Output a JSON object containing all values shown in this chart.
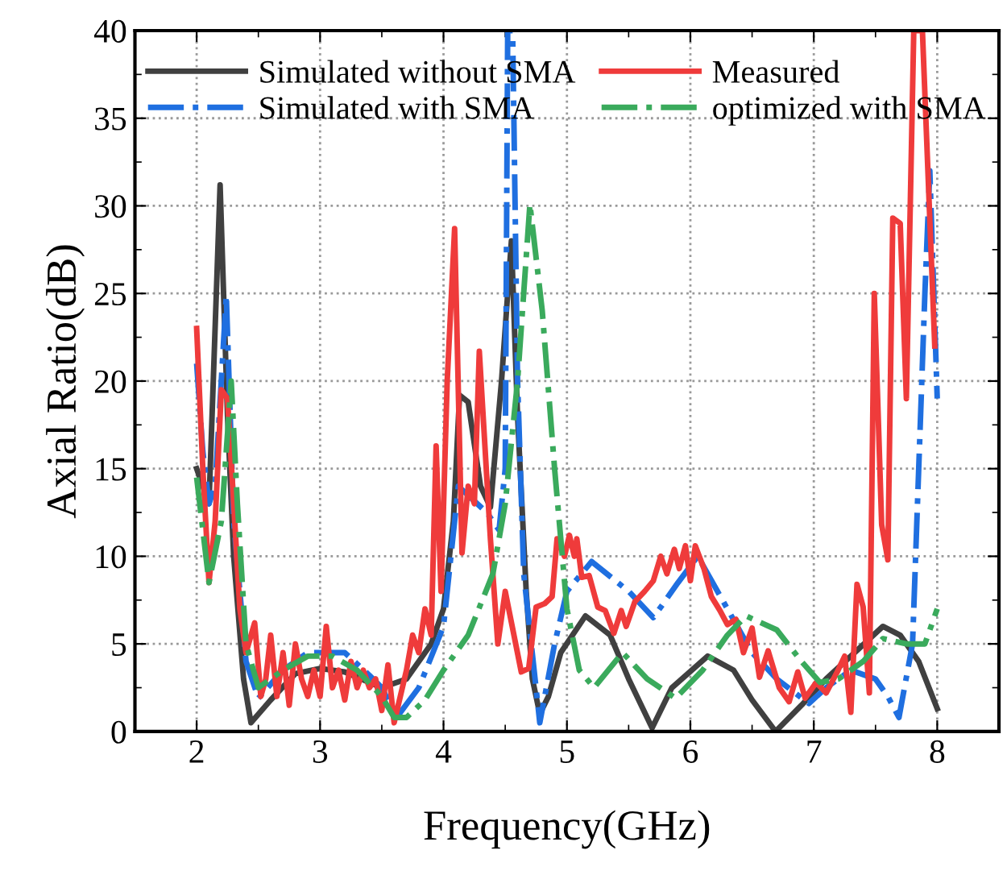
{
  "chart_data": {
    "type": "line",
    "xlabel": "Frequency(GHz)",
    "ylabel": "Axial Ratio(dB)",
    "xlim": [
      1.5,
      8.5
    ],
    "xticks": [
      2,
      3,
      4,
      5,
      6,
      7,
      8
    ],
    "ylim": [
      0,
      40
    ],
    "yticks": [
      0,
      5,
      10,
      15,
      20,
      25,
      30,
      35,
      40
    ],
    "grid": true,
    "legend": "top",
    "marker": "none",
    "series": [
      {
        "name": "Simulated without SMA",
        "color": "#404040",
        "line_style": "solid",
        "x": [
          2.0,
          2.1,
          2.19,
          2.25,
          2.3,
          2.38,
          2.44,
          2.6,
          2.8,
          3.0,
          3.2,
          3.5,
          3.7,
          3.9,
          4.0,
          4.08,
          4.13,
          4.2,
          4.3,
          4.38,
          4.47,
          4.55,
          4.6,
          4.67,
          4.72,
          4.78,
          4.85,
          4.95,
          5.15,
          5.35,
          5.5,
          5.69,
          5.85,
          6.14,
          6.35,
          6.5,
          6.69,
          6.9,
          7.1,
          7.3,
          7.56,
          7.7,
          7.85,
          8.0
        ],
        "values": [
          15,
          13,
          31.2,
          18,
          10,
          3,
          0.5,
          1.8,
          3.3,
          3.6,
          3.4,
          2.5,
          3,
          5,
          7,
          12,
          19.2,
          18.8,
          14,
          12.8,
          20,
          28,
          18,
          8,
          3,
          1,
          2,
          4.5,
          6.6,
          5.5,
          3,
          0.2,
          2.5,
          4.3,
          3.5,
          1.8,
          0,
          1.5,
          3,
          4.3,
          6,
          5.5,
          4,
          1.3
        ]
      },
      {
        "name": "Simulated with SMA",
        "color": "#1f6fe0",
        "line_style": "dashdot",
        "x": [
          2.0,
          2.05,
          2.1,
          2.15,
          2.24,
          2.3,
          2.4,
          2.5,
          2.7,
          2.9,
          3.2,
          3.4,
          3.5,
          3.62,
          3.8,
          4.0,
          4.12,
          4.35,
          4.45,
          4.5,
          4.52,
          4.56,
          4.6,
          4.65,
          4.78,
          4.9,
          5.0,
          5.2,
          5.5,
          5.7,
          5.9,
          6.06,
          6.3,
          6.5,
          6.7,
          6.96,
          7.1,
          7.3,
          7.5,
          7.6,
          7.69,
          7.8,
          7.85,
          7.9,
          7.94,
          8.0
        ],
        "values": [
          21,
          16,
          13,
          14,
          24.9,
          12,
          4,
          1.9,
          3.5,
          4.5,
          4.5,
          3.2,
          2.5,
          0.8,
          2.5,
          6,
          14,
          12.5,
          11.5,
          15,
          40,
          40,
          20,
          9,
          0.5,
          5,
          8,
          9.7,
          8,
          6.5,
          8.5,
          10,
          7,
          4.5,
          3,
          1.6,
          2.5,
          3.5,
          3,
          2,
          0.8,
          5,
          15,
          25,
          32,
          19
        ]
      },
      {
        "name": "Measured",
        "color": "#ef3b3b",
        "line_style": "solid",
        "x": [
          2.0,
          2.05,
          2.1,
          2.15,
          2.2,
          2.25,
          2.3,
          2.35,
          2.4,
          2.47,
          2.52,
          2.56,
          2.6,
          2.65,
          2.7,
          2.75,
          2.8,
          2.85,
          2.9,
          2.95,
          3.0,
          3.05,
          3.1,
          3.15,
          3.2,
          3.25,
          3.3,
          3.35,
          3.4,
          3.45,
          3.5,
          3.55,
          3.6,
          3.65,
          3.7,
          3.75,
          3.8,
          3.85,
          3.9,
          3.94,
          3.98,
          4.03,
          4.09,
          4.15,
          4.2,
          4.25,
          4.29,
          4.38,
          4.44,
          4.5,
          4.63,
          4.69,
          4.75,
          4.82,
          4.88,
          4.92,
          4.98,
          5.02,
          5.06,
          5.08,
          5.12,
          5.18,
          5.25,
          5.31,
          5.38,
          5.44,
          5.48,
          5.55,
          5.63,
          5.7,
          5.76,
          5.81,
          5.87,
          5.91,
          5.96,
          6.0,
          6.04,
          6.11,
          6.17,
          6.24,
          6.3,
          6.37,
          6.43,
          6.5,
          6.56,
          6.63,
          6.72,
          6.8,
          6.87,
          6.93,
          7.02,
          7.1,
          7.19,
          7.25,
          7.3,
          7.35,
          7.4,
          7.45,
          7.49,
          7.55,
          7.6,
          7.64,
          7.7,
          7.75,
          7.81,
          7.88,
          7.98
        ],
        "values": [
          23,
          15,
          8.5,
          12,
          19.5,
          19,
          13,
          7,
          4.5,
          6.2,
          2,
          3,
          5.5,
          2,
          4.5,
          1.5,
          5,
          3,
          2,
          3.5,
          2,
          6,
          2.5,
          3.5,
          1.8,
          4,
          2.5,
          3.5,
          2.5,
          3,
          1.2,
          3.8,
          0.5,
          2,
          3.5,
          5.5,
          4.5,
          7,
          5.5,
          16.3,
          8,
          20,
          28.7,
          10.2,
          14,
          13,
          21.7,
          11,
          5,
          8,
          3.4,
          3.6,
          7.1,
          7.3,
          7.7,
          11,
          10,
          11.2,
          10,
          11,
          8.8,
          8.9,
          7.1,
          6.9,
          5.6,
          6.9,
          6,
          7.4,
          8,
          8.6,
          10,
          9,
          10.4,
          9.3,
          10.6,
          8.6,
          10.6,
          9.3,
          7.7,
          6.9,
          6.1,
          6.4,
          4.5,
          5.9,
          3.1,
          4.6,
          2.5,
          1.7,
          3.4,
          1.9,
          2.8,
          2.2,
          3.4,
          4.3,
          1.1,
          8.4,
          7.1,
          2.2,
          25,
          11.8,
          9.8,
          29.3,
          29,
          19,
          40,
          40,
          22
        ]
      },
      {
        "name": "optimized with SMA",
        "color": "#3aaa5c",
        "line_style": "dashdot",
        "x": [
          2.0,
          2.1,
          2.2,
          2.28,
          2.33,
          2.4,
          2.5,
          2.7,
          2.9,
          3.1,
          3.3,
          3.5,
          3.6,
          3.7,
          3.85,
          4.0,
          4.2,
          4.4,
          4.5,
          4.6,
          4.7,
          4.8,
          4.9,
          5.0,
          5.1,
          5.22,
          5.45,
          5.65,
          5.88,
          6.1,
          6.3,
          6.45,
          6.7,
          6.9,
          7.05,
          7.2,
          7.4,
          7.56,
          7.75,
          7.9,
          8.0
        ],
        "values": [
          14.5,
          8.5,
          12,
          20,
          13,
          5,
          2.5,
          3.5,
          4.3,
          4.3,
          3.5,
          2,
          0.8,
          0.8,
          1.8,
          3.5,
          5.5,
          9,
          13,
          20,
          30.1,
          24,
          15,
          7,
          3.5,
          2.5,
          4.5,
          3,
          1.9,
          3.5,
          5.5,
          6.6,
          5.8,
          4,
          2.8,
          3,
          4,
          5.3,
          5,
          5,
          7
        ]
      }
    ]
  }
}
